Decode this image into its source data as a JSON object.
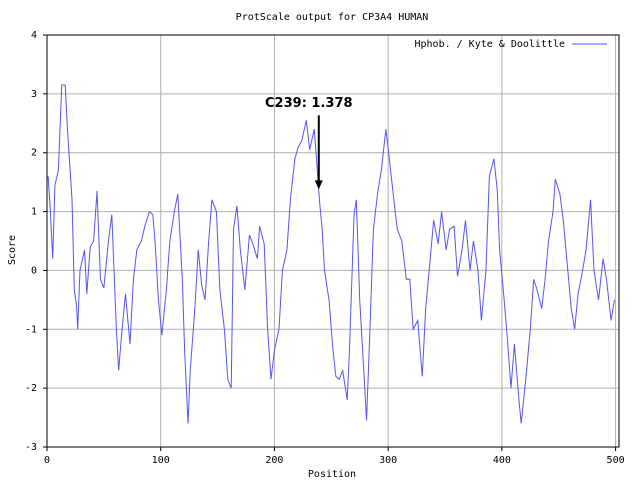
{
  "chart_data": {
    "type": "line",
    "title": "ProtScale output for CP3A4 HUMAN",
    "x_label": "Position",
    "y_label": "Score",
    "xlim": [
      0,
      503
    ],
    "xticks": [
      0,
      100,
      200,
      300,
      400,
      500
    ],
    "ylim": [
      -3,
      4
    ],
    "yticks": [
      -3,
      -2,
      -1,
      0,
      1,
      2,
      3,
      4
    ],
    "grid": true,
    "legend": "top-right",
    "x": [
      1,
      3,
      5,
      7,
      10,
      13,
      16,
      18,
      22,
      24,
      26,
      27,
      29,
      33,
      35,
      38,
      41,
      44,
      47,
      50,
      54,
      57,
      61,
      63,
      66,
      69,
      73,
      76,
      79,
      83,
      86,
      90,
      93,
      95,
      98,
      101,
      105,
      108,
      112,
      115,
      119,
      121,
      124,
      126,
      130,
      133,
      136,
      139,
      142,
      145,
      149,
      152,
      156,
      159,
      162,
      164,
      167,
      170,
      174,
      178,
      181,
      185,
      187,
      191,
      194,
      197,
      200,
      204,
      207,
      211,
      214,
      218,
      221,
      224,
      228,
      231,
      235,
      237,
      238,
      240,
      242,
      244,
      248,
      251,
      254,
      257,
      260,
      264,
      266,
      270,
      272,
      275,
      279,
      281,
      284,
      287,
      291,
      294,
      298,
      301,
      305,
      308,
      312,
      316,
      319,
      322,
      326,
      330,
      333,
      337,
      340,
      344,
      347,
      351,
      354,
      358,
      361,
      365,
      368,
      372,
      375,
      379,
      382,
      386,
      389,
      393,
      396,
      398,
      402,
      405,
      408,
      411,
      415,
      417,
      421,
      425,
      428,
      431,
      435,
      438,
      441,
      445,
      447,
      451,
      454,
      458,
      461,
      464,
      467,
      471,
      474,
      478,
      481,
      485,
      489,
      492,
      496,
      499
    ],
    "series": [
      {
        "name": "Hphob. / Kyte & Doolittle",
        "color": "#5555ee",
        "values": [
          1.6,
          1.0,
          0.2,
          1.45,
          1.7,
          3.15,
          3.15,
          2.4,
          1.2,
          -0.33,
          -0.6,
          -1.0,
          0,
          0.35,
          -0.4,
          0.4,
          0.5,
          1.35,
          -0.15,
          -0.3,
          0.5,
          0.95,
          -1.0,
          -1.7,
          -1.0,
          -0.4,
          -1.25,
          -0.15,
          0.35,
          0.5,
          0.75,
          1.0,
          0.95,
          0.5,
          -0.5,
          -1.1,
          -0.33,
          0.5,
          1.0,
          1.3,
          -0.15,
          -1.35,
          -2.6,
          -1.7,
          -0.65,
          0.35,
          -0.25,
          -0.5,
          0.45,
          1.2,
          1.0,
          -0.33,
          -1.0,
          -1.85,
          -2.0,
          0.7,
          1.1,
          0.35,
          -0.33,
          0.6,
          0.45,
          0.2,
          0.75,
          0.45,
          -1.0,
          -1.85,
          -1.35,
          -1.0,
          0,
          0.35,
          1.2,
          1.9,
          2.1,
          2.2,
          2.55,
          2.05,
          2.4,
          1.9,
          1.6,
          1.1,
          0.7,
          0,
          -0.5,
          -1.25,
          -1.8,
          -1.85,
          -1.7,
          -2.2,
          -1.35,
          0.95,
          1.2,
          -0.5,
          -1.85,
          -2.55,
          -1.0,
          0.7,
          1.35,
          1.7,
          2.4,
          1.9,
          1.2,
          0.7,
          0.5,
          -0.15,
          -0.15,
          -1.0,
          -0.85,
          -1.8,
          -0.65,
          0.2,
          0.85,
          0.45,
          1.0,
          0.35,
          0.7,
          0.75,
          -0.1,
          0.35,
          0.85,
          0,
          0.5,
          0,
          -0.85,
          0,
          1.6,
          1.9,
          1.35,
          0.35,
          -0.5,
          -1.2,
          -2.0,
          -1.25,
          -2.2,
          -2.6,
          -1.85,
          -1.0,
          -0.15,
          -0.33,
          -0.65,
          -0.15,
          0.5,
          1.0,
          1.55,
          1.3,
          0.85,
          0,
          -0.65,
          -1.0,
          -0.4,
          0,
          0.35,
          1.2,
          0,
          -0.5,
          0.2,
          -0.15,
          -0.85,
          -0.5
        ]
      }
    ],
    "annotations": [
      {
        "text": "C239: 1.378",
        "x": 239,
        "y": 1.378
      }
    ]
  }
}
